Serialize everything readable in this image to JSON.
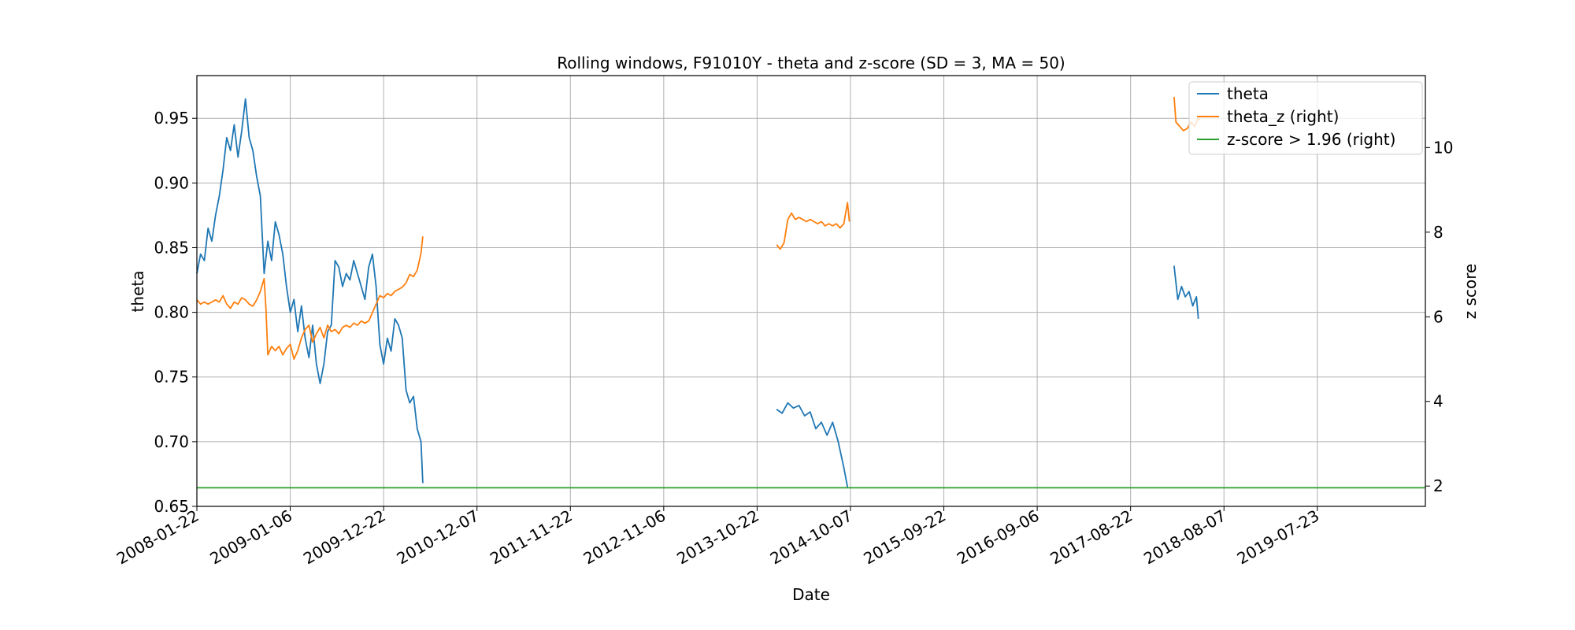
{
  "chart_data": {
    "type": "line",
    "title": "Rolling windows, F91010Y - theta and z-score (SD = 3, MA = 50)",
    "xlabel": "Date",
    "ylabel": "theta",
    "ylabel_right": "z score",
    "xlim": [
      "2008-01-22",
      "2020-08-31"
    ],
    "ylim": [
      0.65,
      0.983
    ],
    "ylim_right": [
      1.52,
      11.7
    ],
    "x_ticks": [
      "2008-01-22",
      "2009-01-06",
      "2009-12-22",
      "2010-12-07",
      "2011-11-22",
      "2012-11-06",
      "2013-10-22",
      "2014-10-07",
      "2015-09-22",
      "2016-09-06",
      "2017-08-22",
      "2018-08-07",
      "2019-07-23"
    ],
    "y_ticks": [
      0.65,
      0.7,
      0.75,
      0.8,
      0.85,
      0.9,
      0.95
    ],
    "y_ticks_right": [
      2,
      4,
      6,
      8,
      10
    ],
    "grid": true,
    "legend_position": "top-right",
    "colors": {
      "theta": "#1f77b4",
      "theta_z": "#ff7f0e",
      "threshold": "#2ca02c"
    },
    "series": [
      {
        "name": "theta",
        "axis": "left",
        "segments": [
          [
            [
              "2008-01-22",
              0.83
            ],
            [
              "2008-02-05",
              0.845
            ],
            [
              "2008-02-19",
              0.84
            ],
            [
              "2008-03-04",
              0.865
            ],
            [
              "2008-03-18",
              0.855
            ],
            [
              "2008-04-01",
              0.875
            ],
            [
              "2008-04-15",
              0.89
            ],
            [
              "2008-04-29",
              0.91
            ],
            [
              "2008-05-13",
              0.935
            ],
            [
              "2008-05-27",
              0.925
            ],
            [
              "2008-06-10",
              0.945
            ],
            [
              "2008-06-24",
              0.92
            ],
            [
              "2008-07-08",
              0.94
            ],
            [
              "2008-07-22",
              0.965
            ],
            [
              "2008-08-05",
              0.935
            ],
            [
              "2008-08-19",
              0.925
            ],
            [
              "2008-09-02",
              0.905
            ],
            [
              "2008-09-16",
              0.89
            ],
            [
              "2008-09-30",
              0.83
            ],
            [
              "2008-10-14",
              0.855
            ],
            [
              "2008-10-28",
              0.84
            ],
            [
              "2008-11-11",
              0.87
            ],
            [
              "2008-11-25",
              0.86
            ],
            [
              "2008-12-09",
              0.845
            ],
            [
              "2008-12-23",
              0.82
            ],
            [
              "2009-01-06",
              0.8
            ],
            [
              "2009-01-20",
              0.81
            ],
            [
              "2009-02-03",
              0.785
            ],
            [
              "2009-02-17",
              0.805
            ],
            [
              "2009-03-03",
              0.78
            ],
            [
              "2009-03-17",
              0.765
            ],
            [
              "2009-03-31",
              0.79
            ],
            [
              "2009-04-14",
              0.76
            ],
            [
              "2009-04-28",
              0.745
            ],
            [
              "2009-05-12",
              0.76
            ],
            [
              "2009-05-26",
              0.785
            ],
            [
              "2009-06-09",
              0.79
            ],
            [
              "2009-06-23",
              0.84
            ],
            [
              "2009-07-07",
              0.835
            ],
            [
              "2009-07-21",
              0.82
            ],
            [
              "2009-08-04",
              0.83
            ],
            [
              "2009-08-18",
              0.825
            ],
            [
              "2009-09-01",
              0.84
            ],
            [
              "2009-09-15",
              0.83
            ],
            [
              "2009-09-29",
              0.82
            ],
            [
              "2009-10-13",
              0.81
            ],
            [
              "2009-10-27",
              0.835
            ],
            [
              "2009-11-10",
              0.845
            ],
            [
              "2009-11-24",
              0.82
            ],
            [
              "2009-12-08",
              0.775
            ],
            [
              "2009-12-22",
              0.76
            ],
            [
              "2010-01-05",
              0.78
            ],
            [
              "2010-01-19",
              0.77
            ],
            [
              "2010-02-02",
              0.795
            ],
            [
              "2010-02-16",
              0.79
            ],
            [
              "2010-03-02",
              0.78
            ],
            [
              "2010-03-16",
              0.74
            ],
            [
              "2010-03-30",
              0.73
            ],
            [
              "2010-04-13",
              0.735
            ],
            [
              "2010-04-27",
              0.71
            ],
            [
              "2010-05-11",
              0.7
            ],
            [
              "2010-05-18",
              0.668
            ]
          ],
          [
            [
              "2014-01-03",
              0.725
            ],
            [
              "2014-01-24",
              0.722
            ],
            [
              "2014-02-14",
              0.73
            ],
            [
              "2014-03-07",
              0.726
            ],
            [
              "2014-03-28",
              0.728
            ],
            [
              "2014-04-18",
              0.72
            ],
            [
              "2014-05-09",
              0.723
            ],
            [
              "2014-05-30",
              0.71
            ],
            [
              "2014-06-20",
              0.715
            ],
            [
              "2014-07-11",
              0.705
            ],
            [
              "2014-08-01",
              0.715
            ],
            [
              "2014-08-22",
              0.7
            ],
            [
              "2014-09-12",
              0.68
            ],
            [
              "2014-09-26",
              0.665
            ]
          ],
          [
            [
              "2018-02-01",
              0.836
            ],
            [
              "2018-02-15",
              0.81
            ],
            [
              "2018-03-01",
              0.82
            ],
            [
              "2018-03-15",
              0.812
            ],
            [
              "2018-03-29",
              0.816
            ],
            [
              "2018-04-12",
              0.805
            ],
            [
              "2018-04-26",
              0.812
            ],
            [
              "2018-05-03",
              0.795
            ]
          ]
        ]
      },
      {
        "name": "theta_z (right)",
        "axis": "right",
        "segments": [
          [
            [
              "2008-01-22",
              6.4
            ],
            [
              "2008-02-05",
              6.3
            ],
            [
              "2008-02-19",
              6.35
            ],
            [
              "2008-03-04",
              6.3
            ],
            [
              "2008-03-18",
              6.35
            ],
            [
              "2008-04-01",
              6.4
            ],
            [
              "2008-04-15",
              6.35
            ],
            [
              "2008-04-29",
              6.5
            ],
            [
              "2008-05-13",
              6.3
            ],
            [
              "2008-05-27",
              6.2
            ],
            [
              "2008-06-10",
              6.35
            ],
            [
              "2008-06-24",
              6.3
            ],
            [
              "2008-07-08",
              6.45
            ],
            [
              "2008-07-22",
              6.4
            ],
            [
              "2008-08-05",
              6.3
            ],
            [
              "2008-08-19",
              6.25
            ],
            [
              "2008-09-02",
              6.4
            ],
            [
              "2008-09-16",
              6.6
            ],
            [
              "2008-09-30",
              6.9
            ],
            [
              "2008-10-07",
              6.2
            ],
            [
              "2008-10-14",
              5.1
            ],
            [
              "2008-10-28",
              5.3
            ],
            [
              "2008-11-11",
              5.2
            ],
            [
              "2008-11-25",
              5.3
            ],
            [
              "2008-12-09",
              5.1
            ],
            [
              "2008-12-23",
              5.25
            ],
            [
              "2009-01-06",
              5.35
            ],
            [
              "2009-01-20",
              5.0
            ],
            [
              "2009-02-03",
              5.2
            ],
            [
              "2009-02-17",
              5.5
            ],
            [
              "2009-03-03",
              5.7
            ],
            [
              "2009-03-17",
              5.8
            ],
            [
              "2009-03-31",
              5.4
            ],
            [
              "2009-04-14",
              5.6
            ],
            [
              "2009-04-28",
              5.75
            ],
            [
              "2009-05-12",
              5.5
            ],
            [
              "2009-05-26",
              5.8
            ],
            [
              "2009-06-09",
              5.65
            ],
            [
              "2009-06-23",
              5.7
            ],
            [
              "2009-07-07",
              5.6
            ],
            [
              "2009-07-21",
              5.75
            ],
            [
              "2009-08-04",
              5.8
            ],
            [
              "2009-08-18",
              5.75
            ],
            [
              "2009-09-01",
              5.85
            ],
            [
              "2009-09-15",
              5.8
            ],
            [
              "2009-09-29",
              5.9
            ],
            [
              "2009-10-13",
              5.85
            ],
            [
              "2009-10-27",
              5.9
            ],
            [
              "2009-11-10",
              6.1
            ],
            [
              "2009-11-24",
              6.3
            ],
            [
              "2009-12-08",
              6.5
            ],
            [
              "2009-12-22",
              6.45
            ],
            [
              "2010-01-05",
              6.55
            ],
            [
              "2010-01-19",
              6.5
            ],
            [
              "2010-02-02",
              6.6
            ],
            [
              "2010-02-16",
              6.65
            ],
            [
              "2010-03-02",
              6.7
            ],
            [
              "2010-03-16",
              6.8
            ],
            [
              "2010-03-30",
              7.0
            ],
            [
              "2010-04-13",
              6.95
            ],
            [
              "2010-04-27",
              7.1
            ],
            [
              "2010-05-11",
              7.5
            ],
            [
              "2010-05-18",
              7.9
            ]
          ],
          [
            [
              "2014-01-03",
              7.7
            ],
            [
              "2014-01-17",
              7.6
            ],
            [
              "2014-01-31",
              7.75
            ],
            [
              "2014-02-14",
              8.3
            ],
            [
              "2014-02-28",
              8.45
            ],
            [
              "2014-03-14",
              8.3
            ],
            [
              "2014-03-28",
              8.35
            ],
            [
              "2014-04-11",
              8.3
            ],
            [
              "2014-04-25",
              8.25
            ],
            [
              "2014-05-09",
              8.3
            ],
            [
              "2014-05-23",
              8.25
            ],
            [
              "2014-06-06",
              8.2
            ],
            [
              "2014-06-20",
              8.25
            ],
            [
              "2014-07-04",
              8.15
            ],
            [
              "2014-07-18",
              8.2
            ],
            [
              "2014-08-01",
              8.15
            ],
            [
              "2014-08-15",
              8.2
            ],
            [
              "2014-08-29",
              8.1
            ],
            [
              "2014-09-12",
              8.2
            ],
            [
              "2014-09-26",
              8.7
            ],
            [
              "2014-10-03",
              8.25
            ]
          ],
          [
            [
              "2018-02-01",
              11.2
            ],
            [
              "2018-02-08",
              10.6
            ],
            [
              "2018-02-22",
              10.5
            ],
            [
              "2018-03-08",
              10.4
            ],
            [
              "2018-03-22",
              10.45
            ],
            [
              "2018-04-05",
              10.6
            ],
            [
              "2018-04-19",
              10.5
            ],
            [
              "2018-05-03",
              10.7
            ],
            [
              "2018-05-10",
              10.65
            ]
          ]
        ]
      },
      {
        "name": "z-score > 1.96 (right)",
        "axis": "right",
        "segments": [
          [
            [
              "2008-01-22",
              1.96
            ],
            [
              "2020-08-31",
              1.96
            ]
          ]
        ]
      }
    ]
  }
}
